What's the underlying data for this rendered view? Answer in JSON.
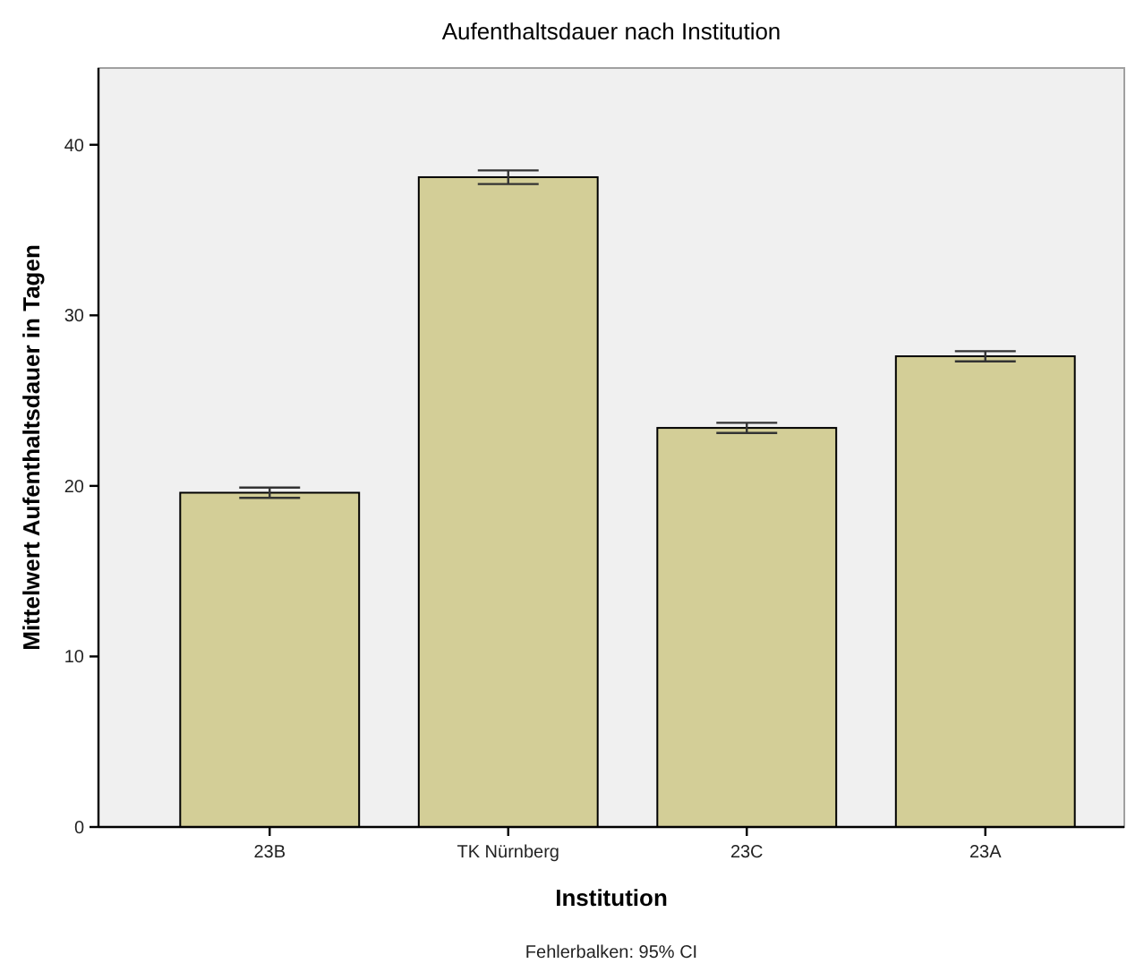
{
  "chart_data": {
    "type": "bar",
    "title": "Aufenthaltsdauer nach Institution",
    "xlabel": "Institution",
    "ylabel": "Mittelwert Aufenthaltsdauer in Tagen",
    "categories": [
      "23B",
      "TK Nürnberg",
      "23C",
      "23A"
    ],
    "values": [
      19.6,
      38.1,
      23.4,
      27.6
    ],
    "errors": [
      0.3,
      0.4,
      0.3,
      0.3
    ],
    "color": "#d3ce97",
    "ylim": [
      0,
      44.5
    ],
    "yticks": [
      0,
      10,
      20,
      30,
      40
    ],
    "grid": false,
    "annotations": [
      "Fehlerbalken: 95% CI"
    ]
  }
}
